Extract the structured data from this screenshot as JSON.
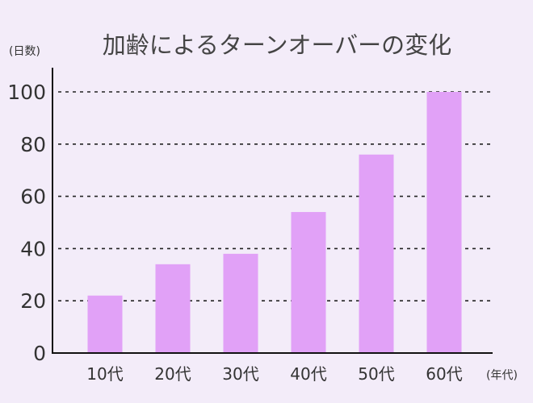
{
  "chart_data": {
    "type": "bar",
    "title": "加齢によるターンオーバーの変化",
    "ylabel": "(日数)",
    "xlabel": "(年代)",
    "categories": [
      "10代",
      "20代",
      "30代",
      "40代",
      "50代",
      "60代"
    ],
    "values": [
      22,
      34,
      38,
      54,
      76,
      100
    ],
    "ylim": [
      0,
      108
    ],
    "yticks": [
      0,
      20,
      40,
      60,
      80,
      100
    ],
    "grid": "horizontal-dashed",
    "colors": {
      "bar": "#e1a1f7",
      "background": "#f3ecf9",
      "axis": "#111111",
      "grid": "#222222"
    }
  }
}
